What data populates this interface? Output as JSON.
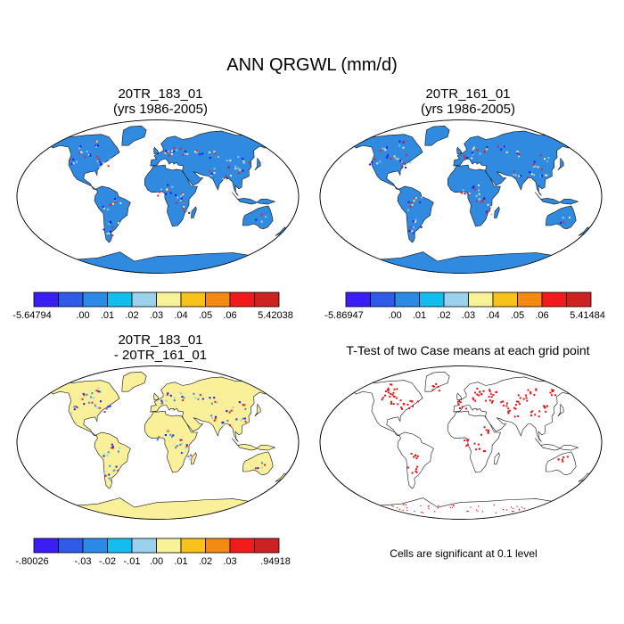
{
  "figure": {
    "title": "ANN QRGWL (mm/d)"
  },
  "panels": [
    {
      "id": "case1",
      "title_line1": "20TR_183_01",
      "title_line2": "(yrs 1986-2005)",
      "ocean_color": "#ffffff",
      "land_color": "#2f8ae0",
      "hotspot_colors": [
        "#1e0ff0",
        "#f01c1c",
        "#f7e98a",
        "#8ec7ec"
      ],
      "colorbar": {
        "colors": [
          "#3b1ef5",
          "#2f5be8",
          "#2a8ae6",
          "#14bdf0",
          "#9ad2ee",
          "#f8f39a",
          "#f8c21c",
          "#f58a12",
          "#f21a1a",
          "#cc2222"
        ],
        "labels": [
          "-5.64794",
          ".00",
          ".01",
          ".02",
          ".03",
          ".04",
          ".05",
          ".06",
          "5.42038"
        ]
      }
    },
    {
      "id": "case2",
      "title_line1": "20TR_161_01",
      "title_line2": "(yrs 1986-2005)",
      "ocean_color": "#ffffff",
      "land_color": "#2f8ae0",
      "hotspot_colors": [
        "#1e0ff0",
        "#f01c1c",
        "#f7e98a",
        "#8ec7ec"
      ],
      "colorbar": {
        "colors": [
          "#3b1ef5",
          "#2f5be8",
          "#2a8ae6",
          "#14bdf0",
          "#9ad2ee",
          "#f8f39a",
          "#f8c21c",
          "#f58a12",
          "#f21a1a",
          "#cc2222"
        ],
        "labels": [
          "-5.86947",
          ".00",
          ".01",
          ".02",
          ".03",
          ".04",
          ".05",
          ".06",
          "5.41484"
        ]
      }
    },
    {
      "id": "diff",
      "title_line1": "20TR_183_01",
      "title_line2": "- 20TR_161_01",
      "ocean_color": "#ffffff",
      "land_color": "#faf09a",
      "hotspot_colors": [
        "#2a8ae6",
        "#9ad2ee",
        "#1e0ff0",
        "#f01c1c"
      ],
      "colorbar": {
        "colors": [
          "#3b1ef5",
          "#2f5be8",
          "#2a8ae6",
          "#14bdf0",
          "#9ad2ee",
          "#f8f39a",
          "#f8c21c",
          "#f58a12",
          "#f21a1a",
          "#cc2222"
        ],
        "labels": [
          "-.80026",
          "-.03",
          "-.02",
          "-.01",
          ".00",
          ".01",
          ".02",
          ".03",
          ".94918"
        ]
      }
    },
    {
      "id": "ttest",
      "title_line1": "T-Test of two Case means at each grid point",
      "title_line2": "",
      "ocean_color": "#ffffff",
      "land_color": "#ffffff",
      "hotspot_colors": [
        "#e81010"
      ],
      "note": "Cells are significant at 0.1 level"
    }
  ]
}
